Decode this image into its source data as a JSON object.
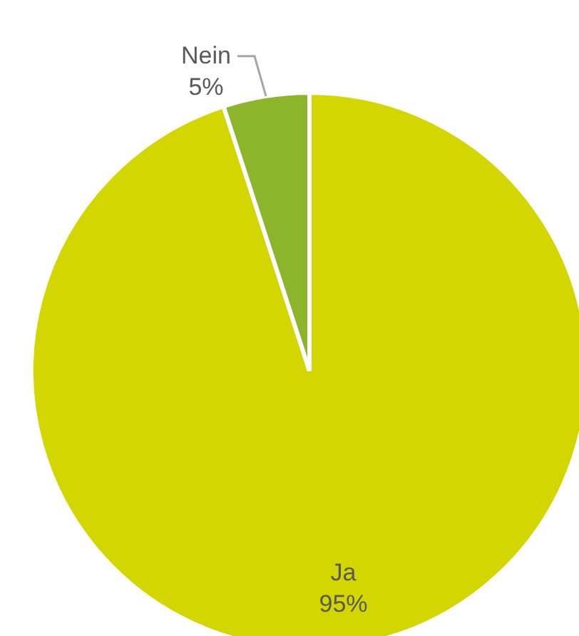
{
  "chart_data": {
    "type": "pie",
    "categories": [
      "Ja",
      "Nein"
    ],
    "values": [
      95,
      5
    ],
    "colors": [
      "#d4d600",
      "#8db52b"
    ],
    "value_labels": [
      "95%",
      "5%"
    ]
  }
}
